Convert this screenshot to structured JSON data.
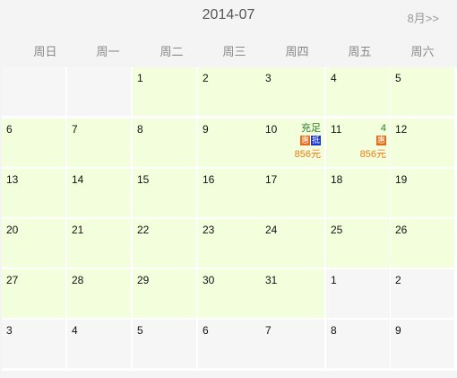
{
  "header": {
    "title": "2014-07",
    "next_label": "8月>>"
  },
  "weekdays": [
    "周日",
    "周一",
    "周二",
    "周三",
    "周四",
    "周五",
    "周六"
  ],
  "weeks": [
    [
      {
        "day": "",
        "in_month": false
      },
      {
        "day": "",
        "in_month": false
      },
      {
        "day": "1",
        "in_month": true
      },
      {
        "day": "2",
        "in_month": true
      },
      {
        "day": "3",
        "in_month": true
      },
      {
        "day": "4",
        "in_month": true
      },
      {
        "day": "5",
        "in_month": true
      }
    ],
    [
      {
        "day": "6",
        "in_month": true
      },
      {
        "day": "7",
        "in_month": true
      },
      {
        "day": "8",
        "in_month": true
      },
      {
        "day": "9",
        "in_month": true
      },
      {
        "day": "10",
        "in_month": true,
        "status": "充足",
        "badges": [
          "惠",
          "抵"
        ],
        "price": "856元"
      },
      {
        "day": "11",
        "in_month": true,
        "status": "4",
        "badges": [
          "惠"
        ],
        "price": "856元"
      },
      {
        "day": "12",
        "in_month": true
      }
    ],
    [
      {
        "day": "13",
        "in_month": true
      },
      {
        "day": "14",
        "in_month": true
      },
      {
        "day": "15",
        "in_month": true
      },
      {
        "day": "16",
        "in_month": true
      },
      {
        "day": "17",
        "in_month": true
      },
      {
        "day": "18",
        "in_month": true
      },
      {
        "day": "19",
        "in_month": true
      }
    ],
    [
      {
        "day": "20",
        "in_month": true
      },
      {
        "day": "21",
        "in_month": true
      },
      {
        "day": "22",
        "in_month": true
      },
      {
        "day": "23",
        "in_month": true
      },
      {
        "day": "24",
        "in_month": true
      },
      {
        "day": "25",
        "in_month": true
      },
      {
        "day": "26",
        "in_month": true
      }
    ],
    [
      {
        "day": "27",
        "in_month": true
      },
      {
        "day": "28",
        "in_month": true
      },
      {
        "day": "29",
        "in_month": true
      },
      {
        "day": "30",
        "in_month": true
      },
      {
        "day": "31",
        "in_month": true
      },
      {
        "day": "1",
        "in_month": false
      },
      {
        "day": "2",
        "in_month": false
      }
    ],
    [
      {
        "day": "3",
        "in_month": false
      },
      {
        "day": "4",
        "in_month": false
      },
      {
        "day": "5",
        "in_month": false
      },
      {
        "day": "6",
        "in_month": false
      },
      {
        "day": "7",
        "in_month": false
      },
      {
        "day": "8",
        "in_month": false
      },
      {
        "day": "9",
        "in_month": false
      }
    ]
  ],
  "colors": {
    "in_month_bg": "#f3ffdc",
    "out_month_bg": "#f6f6f6",
    "badge_hui": "#e86a12",
    "badge_di": "#1638c8",
    "price": "#f07a14",
    "status": "#2a7a2a"
  }
}
